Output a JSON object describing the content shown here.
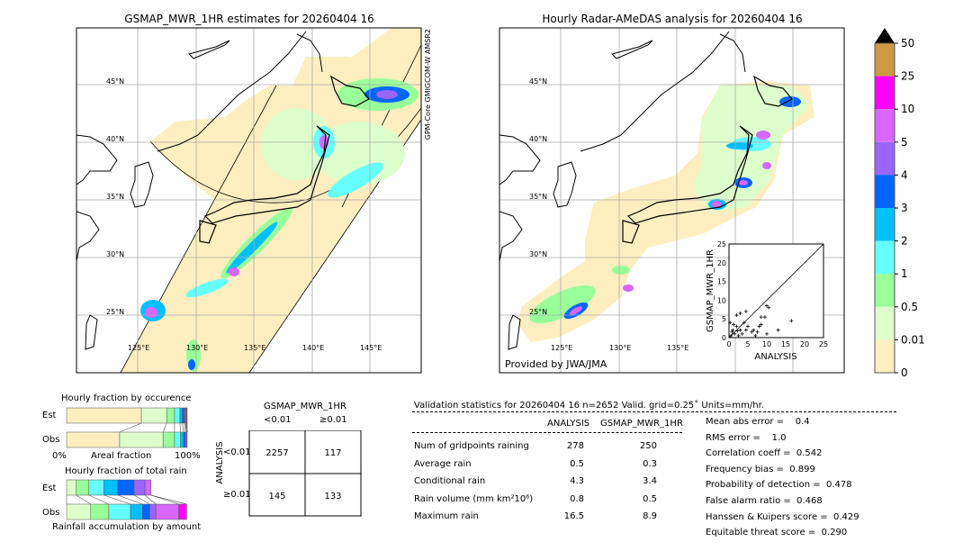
{
  "left_map": {
    "title": "GSMAP_MWR_1HR estimates for 20260404 16",
    "sensor1": "GCOM-W AMSR2",
    "sensor2": "GPM-Core GMI",
    "lat_labels": [
      "45°N",
      "40°N",
      "35°N",
      "30°N",
      "25°N"
    ],
    "lon_labels": [
      "125°E",
      "130°E",
      "135°E",
      "140°E",
      "145°E"
    ]
  },
  "right_map": {
    "title": "Hourly Radar-AMeDAS analysis for 20260404 16",
    "credit": "Provided by JWA/JMA",
    "lat_labels": [
      "45°N",
      "40°N",
      "35°N",
      "30°N",
      "25°N"
    ],
    "lon_labels": [
      "125°E",
      "130°E",
      "135°E"
    ]
  },
  "scatter": {
    "xlabel": "ANALYSIS",
    "ylabel": "GSMAP_MWR_1HR",
    "ticks": [
      "0",
      "5",
      "10",
      "15",
      "20",
      "25"
    ],
    "points": [
      [
        0.5,
        0.5
      ],
      [
        1,
        2
      ],
      [
        1.5,
        1
      ],
      [
        2,
        3
      ],
      [
        2.5,
        0.5
      ],
      [
        3,
        2
      ],
      [
        3.5,
        1
      ],
      [
        4,
        4
      ],
      [
        2,
        6
      ],
      [
        3,
        6.5
      ],
      [
        4.5,
        7
      ],
      [
        4.5,
        2
      ],
      [
        5,
        3
      ],
      [
        6,
        1.5
      ],
      [
        6.5,
        2
      ],
      [
        7,
        0.5
      ],
      [
        7.5,
        1.5
      ],
      [
        8,
        3
      ],
      [
        8.5,
        3.5
      ],
      [
        8.5,
        5.5
      ],
      [
        9.5,
        5.5
      ],
      [
        10,
        8.5
      ],
      [
        10.5,
        8
      ],
      [
        10,
        1
      ],
      [
        13,
        2
      ],
      [
        16.5,
        4.5
      ],
      [
        0.3,
        4
      ],
      [
        1.2,
        3.5
      ],
      [
        0.8,
        1.5
      ],
      [
        2.2,
        1.8
      ]
    ]
  },
  "colorbar": {
    "labels": [
      "50",
      "25",
      "10",
      "5",
      "4",
      "3",
      "2",
      "1",
      "0.5",
      "0.01",
      "0"
    ],
    "colors": [
      "#cd9b45",
      "#ff00ff",
      "#d966ff",
      "#9966ff",
      "#0066ff",
      "#00bfff",
      "#66ffff",
      "#99ff99",
      "#ddffcc",
      "#ffeec0"
    ]
  },
  "occurrence": {
    "title": "Hourly fraction by occurence",
    "est_label": "Est",
    "obs_label": "Obs",
    "x0": "0%",
    "xlabel": "Areal fraction",
    "x1": "100%",
    "est": [
      0.62,
      0.21,
      0.065,
      0.045,
      0.02,
      0.015,
      0.01,
      0.005,
      0.005,
      0.005
    ],
    "obs": [
      0.44,
      0.36,
      0.095,
      0.05,
      0.025,
      0.015,
      0.01,
      0.005,
      0,
      0
    ]
  },
  "total_rain": {
    "title": "Hourly fraction of total rain",
    "est_label": "Est",
    "obs_label": "Obs",
    "xlabel": "Rainfall accumulation by amount",
    "est": [
      0,
      0.08,
      0.105,
      0.125,
      0.115,
      0.135,
      0.09,
      0.05,
      0,
      0
    ],
    "obs": [
      0,
      0.2,
      0.15,
      0.18,
      0.1,
      0.06,
      0.05,
      0.19,
      0.065,
      0
    ]
  },
  "contingency": {
    "title": "GSMAP_MWR_1HR",
    "col1": "<0.01",
    "col2": "≥0.01",
    "row_label": "ANALYSIS",
    "row1": "<0.01",
    "row2": "≥0.01",
    "cells": [
      "2257",
      "117",
      "145",
      "133"
    ]
  },
  "validation": {
    "header": "Validation statistics for 20260404 16  n=2652 Valid. grid=0.25˚ Units=mm/hr.",
    "col_a": "ANALYSIS",
    "col_b": "GSMAP_MWR_1HR",
    "rows": [
      {
        "label": "Num of gridpoints raining",
        "a": "278",
        "b": "250"
      },
      {
        "label": "Average rain",
        "a": "0.5",
        "b": "0.3"
      },
      {
        "label": "Conditional rain",
        "a": "4.3",
        "b": "3.4"
      },
      {
        "label": "Rain volume (mm km²10⁶)",
        "a": "0.8",
        "b": "0.5"
      },
      {
        "label": "Maximum rain",
        "a": "16.5",
        "b": "8.9"
      }
    ],
    "scores": [
      "Mean abs error =    0.4",
      "RMS error =    1.0",
      "Correlation coeff =  0.542",
      "Frequency bias =  0.899",
      "Probability of detection =  0.478",
      "False alarm ratio =  0.468",
      "Hanssen & Kuipers score =  0.429",
      "Equitable threat score =  0.290"
    ]
  }
}
